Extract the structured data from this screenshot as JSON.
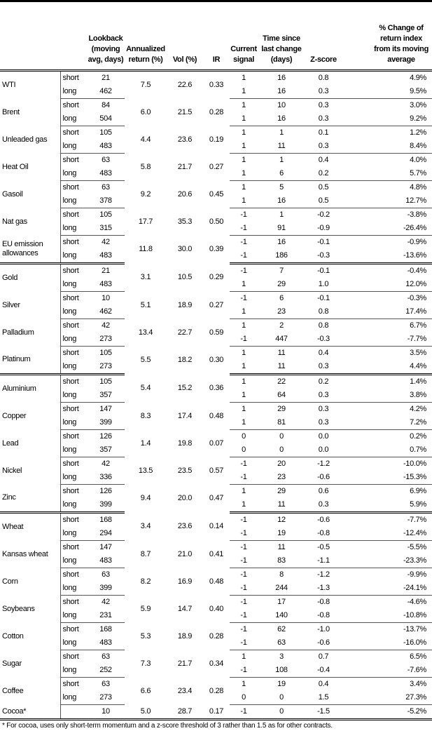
{
  "headers": [
    "",
    "",
    "Lookback (moving avg, days)",
    "Annualized return (%)",
    "Vol (%)",
    "IR",
    "Current signal",
    "Time since last change (days)",
    "Z-score",
    "% Change of return index from its moving average"
  ],
  "groups": [
    [
      {
        "name": "WTI",
        "ann": "7.5",
        "vol": "22.6",
        "ir": "0.33",
        "rows": [
          {
            "type": "short",
            "lookback": "21",
            "signal": "1",
            "time": "16",
            "z": "0.8",
            "pct": "4.9%"
          },
          {
            "type": "long",
            "lookback": "462",
            "signal": "1",
            "time": "16",
            "z": "0.3",
            "pct": "9.5%"
          }
        ]
      },
      {
        "name": "Brent",
        "ann": "6.0",
        "vol": "21.5",
        "ir": "0.28",
        "rows": [
          {
            "type": "short",
            "lookback": "84",
            "signal": "1",
            "time": "10",
            "z": "0.3",
            "pct": "3.0%"
          },
          {
            "type": "long",
            "lookback": "504",
            "signal": "1",
            "time": "16",
            "z": "0.3",
            "pct": "9.2%"
          }
        ]
      },
      {
        "name": "Unleaded gas",
        "ann": "4.4",
        "vol": "23.6",
        "ir": "0.19",
        "rows": [
          {
            "type": "short",
            "lookback": "105",
            "signal": "1",
            "time": "1",
            "z": "0.1",
            "pct": "1.2%"
          },
          {
            "type": "long",
            "lookback": "483",
            "signal": "1",
            "time": "11",
            "z": "0.3",
            "pct": "8.4%"
          }
        ]
      },
      {
        "name": "Heat Oil",
        "ann": "5.8",
        "vol": "21.7",
        "ir": "0.27",
        "rows": [
          {
            "type": "short",
            "lookback": "63",
            "signal": "1",
            "time": "1",
            "z": "0.4",
            "pct": "4.0%"
          },
          {
            "type": "long",
            "lookback": "483",
            "signal": "1",
            "time": "6",
            "z": "0.2",
            "pct": "5.7%"
          }
        ]
      },
      {
        "name": "Gasoil",
        "ann": "9.2",
        "vol": "20.6",
        "ir": "0.45",
        "rows": [
          {
            "type": "short",
            "lookback": "63",
            "signal": "1",
            "time": "5",
            "z": "0.5",
            "pct": "4.8%"
          },
          {
            "type": "long",
            "lookback": "378",
            "signal": "1",
            "time": "16",
            "z": "0.5",
            "pct": "12.7%"
          }
        ]
      },
      {
        "name": "Nat gas",
        "ann": "17.7",
        "vol": "35.3",
        "ir": "0.50",
        "rows": [
          {
            "type": "short",
            "lookback": "105",
            "signal": "-1",
            "time": "1",
            "z": "-0.2",
            "pct": "-3.8%"
          },
          {
            "type": "long",
            "lookback": "315",
            "signal": "-1",
            "time": "91",
            "z": "-0.9",
            "pct": "-26.4%"
          }
        ]
      },
      {
        "name": "EU emission allowances",
        "ann": "11.8",
        "vol": "30.0",
        "ir": "0.39",
        "rows": [
          {
            "type": "short",
            "lookback": "42",
            "signal": "-1",
            "time": "16",
            "z": "-0.1",
            "pct": "-0.9%"
          },
          {
            "type": "long",
            "lookback": "483",
            "signal": "-1",
            "time": "186",
            "z": "-0.3",
            "pct": "-13.6%"
          }
        ]
      }
    ],
    [
      {
        "name": "Gold",
        "ann": "3.1",
        "vol": "10.5",
        "ir": "0.29",
        "rows": [
          {
            "type": "short",
            "lookback": "21",
            "signal": "-1",
            "time": "7",
            "z": "-0.1",
            "pct": "-0.4%"
          },
          {
            "type": "long",
            "lookback": "483",
            "signal": "1",
            "time": "29",
            "z": "1.0",
            "pct": "12.0%"
          }
        ]
      },
      {
        "name": "Silver",
        "ann": "5.1",
        "vol": "18.9",
        "ir": "0.27",
        "rows": [
          {
            "type": "short",
            "lookback": "10",
            "signal": "-1",
            "time": "6",
            "z": "-0.1",
            "pct": "-0.3%"
          },
          {
            "type": "long",
            "lookback": "462",
            "signal": "1",
            "time": "23",
            "z": "0.8",
            "pct": "17.4%"
          }
        ]
      },
      {
        "name": "Palladium",
        "ann": "13.4",
        "vol": "22.7",
        "ir": "0.59",
        "rows": [
          {
            "type": "short",
            "lookback": "42",
            "signal": "1",
            "time": "2",
            "z": "0.8",
            "pct": "6.7%"
          },
          {
            "type": "long",
            "lookback": "273",
            "signal": "-1",
            "time": "447",
            "z": "-0.3",
            "pct": "-7.7%"
          }
        ]
      },
      {
        "name": "Platinum",
        "ann": "5.5",
        "vol": "18.2",
        "ir": "0.30",
        "rows": [
          {
            "type": "short",
            "lookback": "105",
            "signal": "1",
            "time": "11",
            "z": "0.4",
            "pct": "3.5%"
          },
          {
            "type": "long",
            "lookback": "273",
            "signal": "1",
            "time": "11",
            "z": "0.3",
            "pct": "4.4%"
          }
        ]
      }
    ],
    [
      {
        "name": "Aluminium",
        "ann": "5.4",
        "vol": "15.2",
        "ir": "0.36",
        "rows": [
          {
            "type": "short",
            "lookback": "105",
            "signal": "1",
            "time": "22",
            "z": "0.2",
            "pct": "1.4%"
          },
          {
            "type": "long",
            "lookback": "357",
            "signal": "1",
            "time": "64",
            "z": "0.3",
            "pct": "3.8%"
          }
        ]
      },
      {
        "name": "Copper",
        "ann": "8.3",
        "vol": "17.4",
        "ir": "0.48",
        "rows": [
          {
            "type": "short",
            "lookback": "147",
            "signal": "1",
            "time": "29",
            "z": "0.3",
            "pct": "4.2%"
          },
          {
            "type": "long",
            "lookback": "399",
            "signal": "1",
            "time": "81",
            "z": "0.3",
            "pct": "7.2%"
          }
        ]
      },
      {
        "name": "Lead",
        "ann": "1.4",
        "vol": "19.8",
        "ir": "0.07",
        "rows": [
          {
            "type": "short",
            "lookback": "126",
            "signal": "0",
            "time": "0",
            "z": "0.0",
            "pct": "0.2%"
          },
          {
            "type": "long",
            "lookback": "357",
            "signal": "0",
            "time": "0",
            "z": "0.0",
            "pct": "0.7%"
          }
        ]
      },
      {
        "name": "Nickel",
        "ann": "13.5",
        "vol": "23.5",
        "ir": "0.57",
        "rows": [
          {
            "type": "short",
            "lookback": "42",
            "signal": "-1",
            "time": "20",
            "z": "-1.2",
            "pct": "-10.0%"
          },
          {
            "type": "long",
            "lookback": "336",
            "signal": "-1",
            "time": "23",
            "z": "-0.6",
            "pct": "-15.3%"
          }
        ]
      },
      {
        "name": "Zinc",
        "ann": "9.4",
        "vol": "20.0",
        "ir": "0.47",
        "rows": [
          {
            "type": "short",
            "lookback": "126",
            "signal": "1",
            "time": "29",
            "z": "0.6",
            "pct": "6.9%"
          },
          {
            "type": "long",
            "lookback": "399",
            "signal": "1",
            "time": "11",
            "z": "0.3",
            "pct": "5.9%"
          }
        ]
      }
    ],
    [
      {
        "name": "Wheat",
        "ann": "3.4",
        "vol": "23.6",
        "ir": "0.14",
        "rows": [
          {
            "type": "short",
            "lookback": "168",
            "signal": "-1",
            "time": "12",
            "z": "-0.6",
            "pct": "-7.7%"
          },
          {
            "type": "long",
            "lookback": "294",
            "signal": "-1",
            "time": "19",
            "z": "-0.8",
            "pct": "-12.4%"
          }
        ]
      },
      {
        "name": "Kansas wheat",
        "ann": "8.7",
        "vol": "21.0",
        "ir": "0.41",
        "rows": [
          {
            "type": "short",
            "lookback": "147",
            "signal": "-1",
            "time": "11",
            "z": "-0.5",
            "pct": "-5.5%"
          },
          {
            "type": "long",
            "lookback": "483",
            "signal": "-1",
            "time": "83",
            "z": "-1.1",
            "pct": "-23.3%"
          }
        ]
      },
      {
        "name": "Corn",
        "ann": "8.2",
        "vol": "16.9",
        "ir": "0.48",
        "rows": [
          {
            "type": "short",
            "lookback": "63",
            "signal": "-1",
            "time": "8",
            "z": "-1.2",
            "pct": "-9.9%"
          },
          {
            "type": "long",
            "lookback": "399",
            "signal": "-1",
            "time": "244",
            "z": "-1.3",
            "pct": "-24.1%"
          }
        ]
      },
      {
        "name": "Soybeans",
        "ann": "5.9",
        "vol": "14.7",
        "ir": "0.40",
        "rows": [
          {
            "type": "short",
            "lookback": "42",
            "signal": "-1",
            "time": "17",
            "z": "-0.8",
            "pct": "-4.6%"
          },
          {
            "type": "long",
            "lookback": "231",
            "signal": "-1",
            "time": "140",
            "z": "-0.8",
            "pct": "-10.8%"
          }
        ]
      },
      {
        "name": "Cotton",
        "ann": "5.3",
        "vol": "18.9",
        "ir": "0.28",
        "rows": [
          {
            "type": "short",
            "lookback": "168",
            "signal": "-1",
            "time": "62",
            "z": "-1.0",
            "pct": "-13.7%"
          },
          {
            "type": "long",
            "lookback": "483",
            "signal": "-1",
            "time": "63",
            "z": "-0.6",
            "pct": "-16.0%"
          }
        ]
      },
      {
        "name": "Sugar",
        "ann": "7.3",
        "vol": "21.7",
        "ir": "0.34",
        "rows": [
          {
            "type": "short",
            "lookback": "63",
            "signal": "1",
            "time": "3",
            "z": "0.7",
            "pct": "6.5%"
          },
          {
            "type": "long",
            "lookback": "252",
            "signal": "-1",
            "time": "108",
            "z": "-0.4",
            "pct": "-7.6%"
          }
        ]
      },
      {
        "name": "Coffee",
        "ann": "6.6",
        "vol": "23.4",
        "ir": "0.28",
        "rows": [
          {
            "type": "short",
            "lookback": "63",
            "signal": "1",
            "time": "19",
            "z": "0.4",
            "pct": "3.4%"
          },
          {
            "type": "long",
            "lookback": "273",
            "signal": "0",
            "time": "0",
            "z": "1.5",
            "pct": "27.3%"
          }
        ]
      },
      {
        "name": "Cocoa*",
        "ann": "5.0",
        "vol": "28.7",
        "ir": "0.17",
        "rows": [
          {
            "type": "",
            "lookback": "10",
            "signal": "-1",
            "time": "0",
            "z": "-1.5",
            "pct": "-5.2%"
          }
        ]
      }
    ]
  ],
  "footnote": "* For cocoa, uses only short-term momentum and a z-score threshold of 3 rather than 1.5 as for other contracts."
}
